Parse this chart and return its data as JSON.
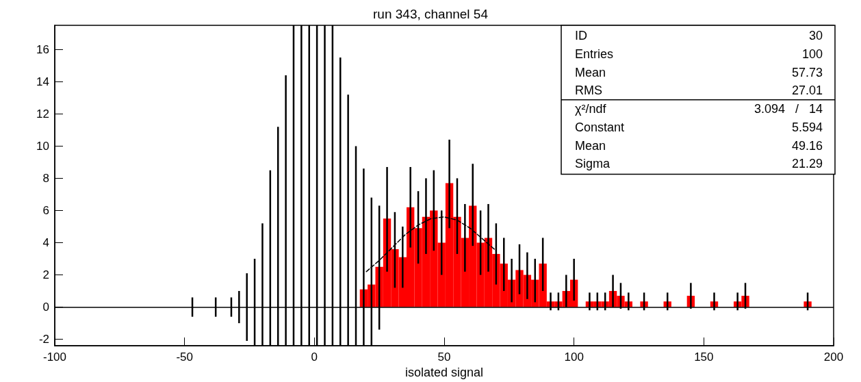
{
  "chart_data": {
    "type": "histogram",
    "title": "run 343, channel 54",
    "xlabel": "isolated signal",
    "bins": [
      -48.5,
      -45.5,
      -42.5,
      -39.5,
      -36.5,
      -33.5,
      -30.5,
      -27.5,
      -24.5,
      -21.5,
      -18.5,
      -15.5,
      -12.5,
      -9.5,
      -6.5,
      -3.5,
      -0.5,
      2.5,
      5.5,
      8.5,
      11.5,
      14.5,
      17.5,
      20.5,
      23.5,
      26.5,
      29.5,
      32.5,
      35.5,
      38.5,
      41.5,
      44.5,
      47.5,
      50.5,
      53.5,
      56.5,
      59.5,
      62.5,
      65.5,
      68.5,
      71.5,
      74.5,
      77.5,
      80.5,
      83.5,
      86.5,
      89.5,
      92.5,
      95.5,
      98.5,
      101.5,
      104.5,
      107.5,
      110.5,
      113.5,
      116.5,
      119.5,
      122.5,
      125.5,
      128.5,
      131.5,
      134.5,
      137.5,
      140.5,
      143.5,
      146.5,
      149.5,
      152.5,
      155.5,
      158.5,
      161.5,
      164.5,
      167.5,
      170.5,
      173.5,
      176.5,
      179.5,
      182.5,
      185.5,
      188.5,
      191.5
    ],
    "series": [
      {
        "color": "#ff0000",
        "values": [
          0,
          0,
          0,
          0,
          0,
          0,
          0,
          0,
          0,
          0,
          0,
          0,
          0,
          0,
          0,
          0,
          0,
          0,
          0,
          0,
          0,
          0,
          1.1,
          1.4,
          2.5,
          5.5,
          3.6,
          3.1,
          6.2,
          4.9,
          5.6,
          6.0,
          4.0,
          7.7,
          5.6,
          4.3,
          6.3,
          4.0,
          4.3,
          3.3,
          2.7,
          1.7,
          2.3,
          2.0,
          1.7,
          2.7,
          0.35,
          0.35,
          1.0,
          1.7,
          0,
          0.35,
          0.35,
          0.35,
          1.0,
          0.7,
          0.35,
          0,
          0.35,
          0,
          0,
          0.35,
          0,
          0,
          0.7,
          0,
          0,
          0.35,
          0,
          0,
          0.35,
          0.7,
          0,
          0,
          0,
          0,
          0,
          0,
          0,
          0.35
        ],
        "errors": [
          [
            -0.6,
            0.6
          ],
          null,
          null,
          [
            -0.6,
            0.6
          ],
          null,
          [
            -0.6,
            0.6
          ],
          [
            -1.0,
            1.0
          ],
          [
            -2.1,
            2.1
          ],
          [
            -2.4,
            3.0
          ],
          [
            -2.4,
            5.2
          ],
          [
            -2.4,
            8.5
          ],
          [
            -2.4,
            11.2
          ],
          [
            -2.4,
            14.4
          ],
          [
            -2.4,
            17.5
          ],
          [
            -2.4,
            17.5
          ],
          [
            -2.4,
            17.5
          ],
          [
            -2.4,
            17.5
          ],
          [
            -2.4,
            17.5
          ],
          [
            -2.4,
            17.5
          ],
          [
            -2.4,
            15.5
          ],
          [
            -2.4,
            13.2
          ],
          [
            -2.4,
            10.0
          ],
          [
            -2.4,
            8.6
          ],
          [
            -2.4,
            6.8
          ],
          [
            -1.4,
            6.3
          ],
          [
            2.2,
            8.7
          ],
          [
            1.2,
            5.9
          ],
          [
            1.2,
            5.0
          ],
          [
            3.7,
            8.7
          ],
          [
            2.7,
            7.2
          ],
          [
            3.3,
            8.0
          ],
          [
            3.5,
            8.5
          ],
          [
            2.0,
            6.0
          ],
          [
            4.9,
            10.4
          ],
          [
            3.3,
            8.0
          ],
          [
            2.2,
            6.4
          ],
          [
            3.8,
            8.9
          ],
          [
            2.0,
            6.0
          ],
          [
            2.2,
            6.4
          ],
          [
            1.4,
            5.2
          ],
          [
            1.0,
            4.3
          ],
          [
            0.3,
            3.0
          ],
          [
            0.8,
            3.9
          ],
          [
            0.5,
            3.4
          ],
          [
            0.3,
            3.0
          ],
          [
            1.0,
            4.3
          ],
          [
            -0.2,
            0.9
          ],
          [
            -0.2,
            0.9
          ],
          [
            0,
            2.0
          ],
          [
            0.4,
            3.0
          ],
          null,
          [
            -0.2,
            0.9
          ],
          [
            -0.2,
            0.9
          ],
          [
            -0.2,
            0.9
          ],
          [
            0,
            2.0
          ],
          [
            -0.1,
            1.5
          ],
          [
            -0.2,
            0.9
          ],
          null,
          [
            -0.2,
            0.9
          ],
          null,
          null,
          [
            -0.2,
            0.9
          ],
          null,
          null,
          [
            -0.1,
            1.5
          ],
          null,
          null,
          [
            -0.2,
            0.9
          ],
          null,
          null,
          [
            -0.2,
            0.9
          ],
          [
            -0.1,
            1.5
          ],
          null,
          null,
          null,
          null,
          null,
          null,
          null,
          [
            -0.2,
            0.9
          ]
        ]
      },
      {
        "type": "line",
        "color": "#000000",
        "line_style": "dashed",
        "x": [
          20,
          25,
          30,
          35,
          40,
          45,
          50,
          55,
          60,
          65,
          70
        ],
        "values": [
          2.2,
          2.9,
          3.7,
          4.5,
          5.1,
          5.5,
          5.6,
          5.4,
          4.9,
          4.2,
          3.5
        ]
      }
    ],
    "xlim": [
      -100,
      200
    ],
    "xticks": [
      -100,
      -50,
      0,
      50,
      100,
      150,
      200
    ],
    "ylim": [
      -2.4,
      17.5
    ],
    "yticks": [
      -2,
      0,
      2,
      4,
      6,
      8,
      10,
      12,
      14,
      16
    ],
    "ref_lines": [
      {
        "axis": "y",
        "value": 0,
        "color": "#000000"
      }
    ],
    "annotations": [
      "ID",
      "30",
      "Entries",
      "100",
      "Mean",
      "57.73",
      "RMS",
      "27.01",
      "χ²/ndf",
      "3.094   /   14",
      "Constant",
      "5.594",
      "Mean",
      "49.16",
      "Sigma",
      "21.29"
    ]
  }
}
